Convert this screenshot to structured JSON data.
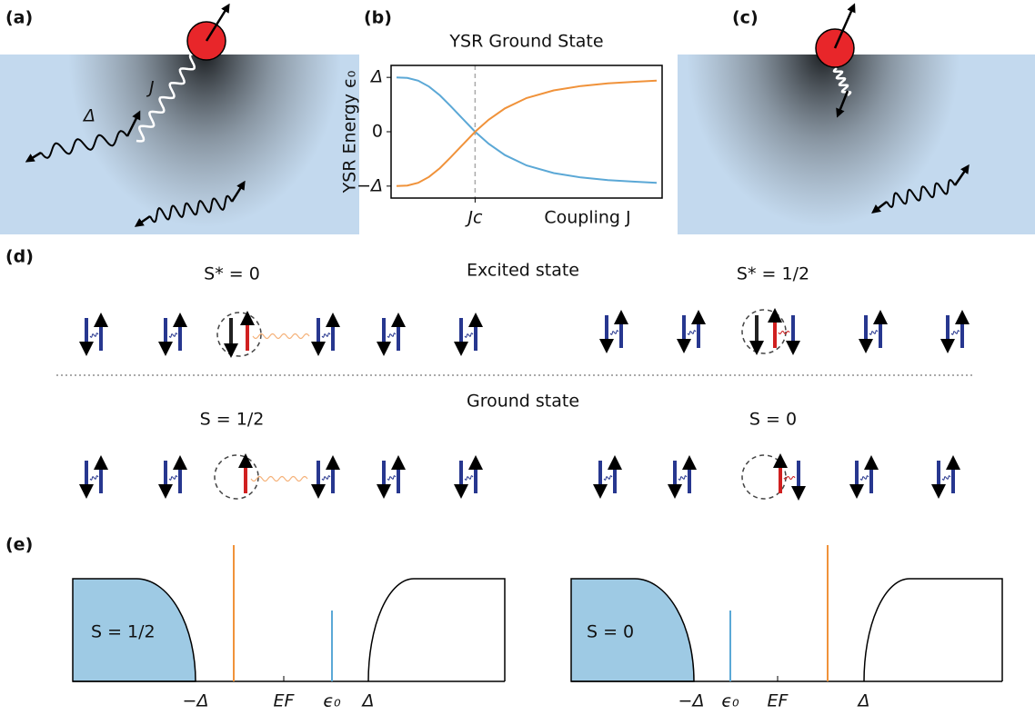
{
  "panels": {
    "a": {
      "label": "(a)",
      "coupling": "J",
      "gap": "Δ"
    },
    "b": {
      "label": "(b)"
    },
    "c": {
      "label": "(c)"
    },
    "d": {
      "label": "(d)",
      "excited_title": "Excited state",
      "ground_title": "Ground state",
      "excited_left": "S* = 0",
      "excited_right": "S* = 1/2",
      "ground_left": "S = 1/2",
      "ground_right": "S = 0"
    },
    "e": {
      "label": "(e)",
      "left": {
        "state": "S = 1/2",
        "ticks": [
          "−Δ",
          "EF",
          "ϵ₀",
          "Δ"
        ]
      },
      "right": {
        "state": "S = 0",
        "ticks": [
          "−Δ",
          "ϵ₀",
          "EF",
          "Δ"
        ]
      }
    }
  },
  "chart_data": {
    "type": "line",
    "title": "YSR Ground State",
    "y_label": "YSR Energy ϵ₀",
    "x_label": "Coupling J",
    "x": [
      0.2,
      0.6,
      1,
      1.4,
      1.8,
      2.2,
      2.6,
      3.1,
      3.6,
      4.2,
      5,
      6,
      7,
      8,
      9,
      9.8
    ],
    "series": [
      {
        "color": "#5ba8d6",
        "values": [
          1.0,
          0.99,
          0.94,
          0.83,
          0.67,
          0.47,
          0.26,
          0,
          -0.22,
          -0.43,
          -0.62,
          -0.76,
          -0.84,
          -0.89,
          -0.92,
          -0.94
        ]
      },
      {
        "color": "#f0923a",
        "values": [
          -1.0,
          -0.99,
          -0.94,
          -0.83,
          -0.67,
          -0.47,
          -0.26,
          0,
          0.22,
          0.43,
          0.62,
          0.76,
          0.84,
          0.89,
          0.92,
          0.94
        ]
      }
    ],
    "xlim": [
      0,
      10
    ],
    "ylim": [
      -1.22,
      1.22
    ],
    "xticks": [
      {
        "value": 3.1,
        "label": "Jc"
      }
    ],
    "yticks": [
      {
        "value": 1,
        "label": "Δ"
      },
      0,
      {
        "value": -1,
        "label": "−Δ"
      }
    ]
  }
}
